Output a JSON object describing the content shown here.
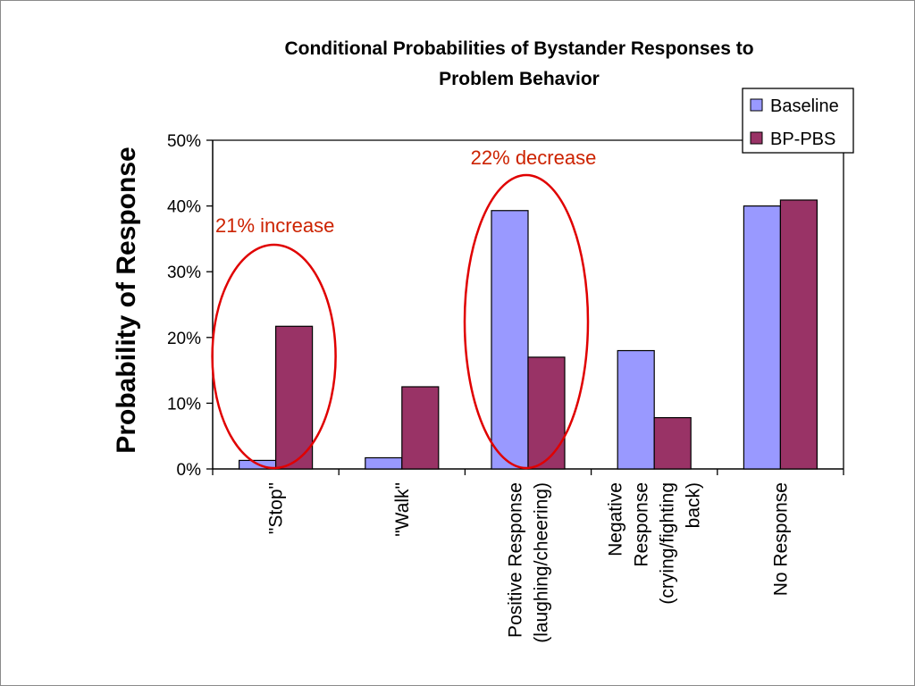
{
  "colors": {
    "baseline": "#9999ff",
    "bp_pbs": "#993366",
    "annotation": "#cc2200",
    "ellipse": "#e00000"
  },
  "chart_data": {
    "type": "bar",
    "title": [
      "Conditional Probabilities of Bystander Responses to",
      "Problem Behavior"
    ],
    "ylabel": "Probability of Response",
    "xlabel": "",
    "ylim": [
      0,
      0.5
    ],
    "yticks": [
      0,
      0.1,
      0.2,
      0.3,
      0.4,
      0.5
    ],
    "ytick_labels": [
      "0%",
      "10%",
      "20%",
      "30%",
      "40%",
      "50%"
    ],
    "categories": [
      [
        "\"Stop\""
      ],
      [
        "\"Walk\""
      ],
      [
        "Positive Response",
        "(laughing/cheering)"
      ],
      [
        "Negative",
        "Response",
        "(crying/fighting",
        "back)"
      ],
      [
        "No Response"
      ]
    ],
    "series": [
      {
        "name": "Baseline",
        "values": [
          0.013,
          0.017,
          0.393,
          0.18,
          0.4
        ]
      },
      {
        "name": "BP-PBS",
        "values": [
          0.217,
          0.125,
          0.17,
          0.078,
          0.409
        ]
      }
    ],
    "legend_position": "top-right",
    "grid": false,
    "annotations": [
      {
        "text": "21% increase",
        "category_index": 0
      },
      {
        "text": "22% decrease",
        "category_index": 2
      }
    ]
  }
}
